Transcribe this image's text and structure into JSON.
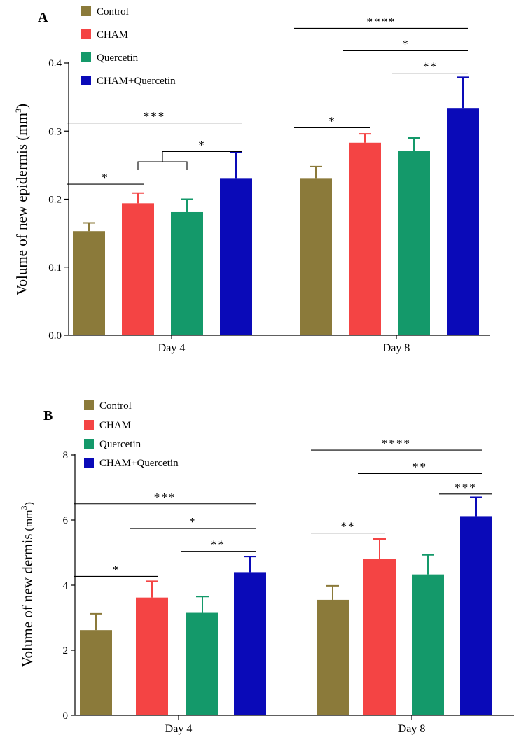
{
  "colors": {
    "Control": "#8b7a3a",
    "CHAM": "#f44444",
    "Quercetin": "#14996a",
    "CHAM+Quercetin": "#0a0ab8"
  },
  "chart_data": [
    {
      "type": "bar",
      "panel": "A",
      "title": "",
      "xlabel": "",
      "ylabel": "Volume of new epidermis (mm",
      "ylabel_sup": "3",
      "ylabel_close": ")",
      "ylim": [
        0,
        0.4
      ],
      "yticks": [
        "0.0",
        "0.1",
        "0.2",
        "0.3",
        "0.4"
      ],
      "categories": [
        "Day 4",
        "Day 8"
      ],
      "legend": [
        "Control",
        "CHAM",
        "Quercetin",
        "CHAM+Quercetin"
      ],
      "legend_position": "top-left",
      "series": [
        {
          "name": "Control",
          "values": [
            0.153,
            0.231
          ],
          "errors": [
            0.012,
            0.017
          ]
        },
        {
          "name": "CHAM",
          "values": [
            0.194,
            0.283
          ],
          "errors": [
            0.015,
            0.013
          ]
        },
        {
          "name": "Quercetin",
          "values": [
            0.181,
            0.271
          ],
          "errors": [
            0.019,
            0.019
          ]
        },
        {
          "name": "CHAM+Quercetin",
          "values": [
            0.231,
            0.334
          ],
          "errors": [
            0.038,
            0.045
          ]
        }
      ],
      "significance": [
        {
          "day": 0,
          "from": 0,
          "to": 1,
          "label": "*",
          "y": 0.222
        },
        {
          "day": 0,
          "from": 1,
          "to": 2,
          "label": "*",
          "y": 0.27,
          "bracket": true
        },
        {
          "day": 0,
          "from": 0,
          "to": 3,
          "label": "***",
          "y": 0.312
        },
        {
          "day": 1,
          "from": 0,
          "to": 1,
          "label": "*",
          "y": 0.305
        },
        {
          "day": 1,
          "from": 2,
          "to": 3,
          "label": "**",
          "y": 0.385
        },
        {
          "day": 1,
          "from": 1,
          "to": 3,
          "label": "*",
          "y": 0.418
        },
        {
          "day": 1,
          "from": 0,
          "to": 3,
          "label": "****",
          "y": 0.451
        }
      ]
    },
    {
      "type": "bar",
      "panel": "B",
      "title": "",
      "xlabel": "",
      "ylabel": "Volume of new dermis",
      "ylabel_small": "(mm",
      "ylabel_sup": "3",
      "ylabel_close": ")",
      "ylim": [
        0,
        8
      ],
      "yticks": [
        "0",
        "2",
        "4",
        "6",
        "8"
      ],
      "categories": [
        "Day 4",
        "Day 8"
      ],
      "legend": [
        "Control",
        "CHAM",
        "Quercetin",
        "CHAM+Quercetin"
      ],
      "legend_position": "top-left",
      "series": [
        {
          "name": "Control",
          "values": [
            2.62,
            3.55
          ],
          "errors": [
            0.5,
            0.43
          ]
        },
        {
          "name": "CHAM",
          "values": [
            3.62,
            4.8
          ],
          "errors": [
            0.5,
            0.62
          ]
        },
        {
          "name": "Quercetin",
          "values": [
            3.15,
            4.33
          ],
          "errors": [
            0.5,
            0.6
          ]
        },
        {
          "name": "CHAM+Quercetin",
          "values": [
            4.4,
            6.12
          ],
          "errors": [
            0.48,
            0.58
          ]
        }
      ],
      "significance": [
        {
          "day": 0,
          "from": 0,
          "to": 1,
          "label": "*",
          "y": 4.27
        },
        {
          "day": 0,
          "from": 2,
          "to": 3,
          "label": "**",
          "y": 5.04
        },
        {
          "day": 0,
          "from": 1,
          "to": 3,
          "label": "*",
          "y": 5.74
        },
        {
          "day": 0,
          "from": 0,
          "to": 3,
          "label": "***",
          "y": 6.5
        },
        {
          "day": 1,
          "from": 0,
          "to": 1,
          "label": "**",
          "y": 5.6
        },
        {
          "day": 1,
          "from": 3,
          "to": 3,
          "label": "***",
          "y": 6.8,
          "half": true
        },
        {
          "day": 1,
          "from": 1,
          "to": 3,
          "label": "**",
          "y": 7.43
        },
        {
          "day": 1,
          "from": 0,
          "to": 3,
          "label": "****",
          "y": 8.15
        }
      ]
    }
  ]
}
